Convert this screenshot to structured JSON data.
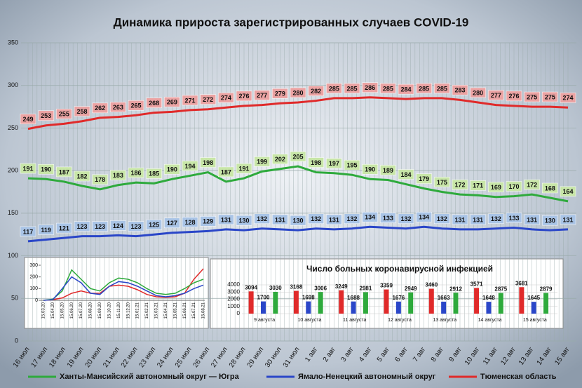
{
  "chart_data": [
    {
      "type": "line",
      "title": "Динамика прироста зарегистрированных случаев COVID-19",
      "categories": [
        "16 июл",
        "17 июл",
        "18 июл",
        "19 июл",
        "20 июл",
        "21 июл",
        "22 июл",
        "23 июл",
        "24 июл",
        "25 июл",
        "26 июл",
        "27 июл",
        "28 июл",
        "29 июл",
        "30 июл",
        "31 июл",
        "1 авг",
        "2 авг",
        "3 авг",
        "4 авг",
        "5 авг",
        "6 авг",
        "7 авг",
        "8 авг",
        "9 авг",
        "10 авг",
        "11 авг",
        "12 авг",
        "13 авг",
        "14 авг",
        "15 авг"
      ],
      "series": [
        {
          "name": "Ханты-Мансийский автономный округ — Югра",
          "color": "#2eaa3c",
          "label_fill": "#c8e6a8",
          "values": [
            191,
            190,
            187,
            182,
            178,
            183,
            186,
            185,
            190,
            194,
            198,
            187,
            191,
            199,
            202,
            205,
            198,
            197,
            195,
            190,
            189,
            184,
            179,
            175,
            172,
            171,
            169,
            170,
            172,
            168,
            164
          ]
        },
        {
          "name": "Ямало-Ненецкий автономный округ",
          "color": "#2a46c8",
          "label_fill": "#a9c4e6",
          "values": [
            117,
            119,
            121,
            123,
            123,
            124,
            123,
            125,
            127,
            128,
            129,
            131,
            130,
            132,
            131,
            130,
            132,
            131,
            132,
            134,
            133,
            132,
            134,
            132,
            131,
            131,
            132,
            133,
            131,
            130,
            131
          ]
        },
        {
          "name": "Тюменская область",
          "color": "#e02a2a",
          "label_fill": "#eba3a3",
          "values": [
            249,
            253,
            255,
            258,
            262,
            263,
            265,
            268,
            269,
            271,
            272,
            274,
            276,
            277,
            279,
            280,
            282,
            285,
            285,
            286,
            285,
            284,
            285,
            285,
            283,
            280,
            277,
            276,
            275,
            275,
            274
          ]
        }
      ],
      "ylim": [
        0,
        350
      ],
      "yticks": [
        0,
        50,
        100,
        150,
        200,
        250,
        300,
        350
      ],
      "grid": true,
      "legend": "bottom"
    },
    {
      "type": "line",
      "categories": [
        "15.03.20",
        "15.04.20",
        "15.05.20",
        "15.06.20",
        "15.07.20",
        "15.08.20",
        "15.09.20",
        "15.10.20",
        "15.11.20",
        "15.12.20",
        "15.01.21",
        "15.02.21",
        "15.03.21",
        "15.04.21",
        "15.05.21",
        "15.06.21",
        "15.07.21",
        "15.08.21"
      ],
      "series": [
        {
          "color": "#e02a2a",
          "values": [
            0,
            5,
            20,
            60,
            80,
            60,
            60,
            120,
            130,
            120,
            90,
            50,
            30,
            25,
            30,
            60,
            180,
            270
          ]
        },
        {
          "color": "#2eaa3c",
          "values": [
            0,
            10,
            80,
            260,
            180,
            100,
            80,
            150,
            190,
            180,
            150,
            100,
            60,
            50,
            60,
            100,
            150,
            180
          ]
        },
        {
          "color": "#2a46c8",
          "values": [
            0,
            5,
            100,
            200,
            150,
            60,
            50,
            120,
            160,
            150,
            120,
            80,
            40,
            30,
            40,
            60,
            100,
            130
          ]
        }
      ],
      "ylim": [
        0,
        300
      ],
      "yticks": [
        0,
        100,
        200,
        300
      ]
    },
    {
      "type": "bar",
      "title": "Число больных коронавирусной инфекцией",
      "categories": [
        "9 августа",
        "10 августа",
        "11 августа",
        "12 августа",
        "13 августа",
        "14 августа",
        "15 августа"
      ],
      "series": [
        {
          "color": "#e02a2a",
          "values": [
            3094,
            3168,
            3249,
            3359,
            3460,
            3571,
            3681
          ]
        },
        {
          "color": "#2a46c8",
          "values": [
            1700,
            1698,
            1688,
            1676,
            1663,
            1648,
            1645
          ]
        },
        {
          "color": "#2eaa3c",
          "values": [
            3030,
            3006,
            2981,
            2949,
            2912,
            2875,
            2879
          ]
        }
      ],
      "ylim": [
        0,
        4000
      ],
      "yticks": [
        0,
        1000,
        2000,
        3000,
        4000
      ]
    }
  ]
}
